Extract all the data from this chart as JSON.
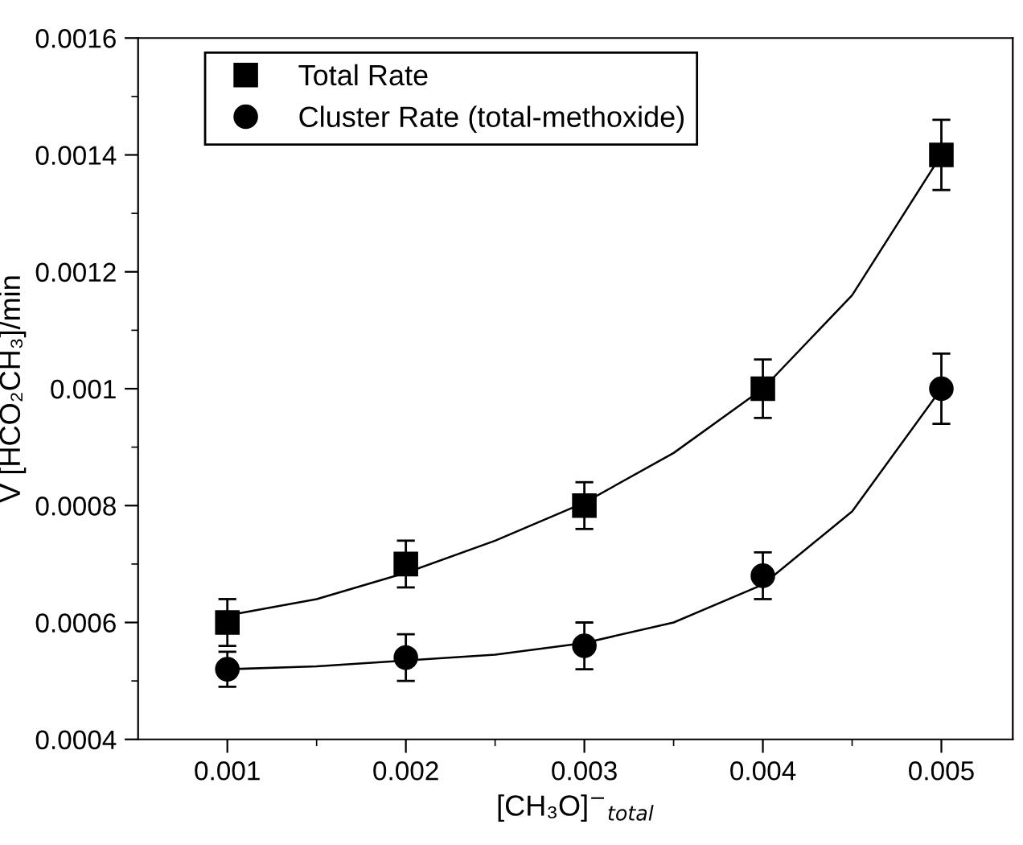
{
  "chart_data": {
    "type": "scatter",
    "xlabel": "[CH₃O]$^{−}$$_{total}$",
    "ylabel": "V [HCO₂CH₃]/min",
    "x": [
      0.001,
      0.002,
      0.003,
      0.004,
      0.005
    ],
    "series": [
      {
        "name": "Total Rate",
        "color": "#000000",
        "marker": "square",
        "values": [
          0.0006,
          0.0007,
          0.0008,
          0.001,
          0.0014
        ],
        "errors": [
          4e-05,
          4e-05,
          4e-05,
          5e-05,
          6e-05
        ]
      },
      {
        "name": "Cluster Rate (total-methoxide)",
        "color": "#000000",
        "marker": "circle",
        "values": [
          0.00052,
          0.00054,
          0.00056,
          0.00068,
          0.001
        ],
        "errors": [
          3e-05,
          4e-05,
          4e-05,
          4e-05,
          6e-05
        ]
      },
      {
        "type": "line",
        "color": "#000000",
        "marker": "none",
        "x": [
          0.001,
          0.0015,
          0.002,
          0.0025,
          0.003,
          0.0035,
          0.004,
          0.0045,
          0.005
        ],
        "values": [
          0.000612,
          0.00064,
          0.000685,
          0.00074,
          0.000805,
          0.00089,
          0.001,
          0.00116,
          0.0014
        ]
      },
      {
        "type": "line",
        "color": "#000000",
        "marker": "none",
        "x": [
          0.001,
          0.0015,
          0.002,
          0.0025,
          0.003,
          0.0035,
          0.004,
          0.0045,
          0.005
        ],
        "values": [
          0.00052,
          0.000525,
          0.000535,
          0.000545,
          0.000565,
          0.0006,
          0.000665,
          0.00079,
          0.001
        ]
      }
    ],
    "xlim": [
      0.0005,
      0.0054
    ],
    "ylim": [
      0.0004,
      0.0016
    ],
    "xticks": [
      0.001,
      0.002,
      0.003,
      0.004,
      0.005
    ],
    "yticks": [
      0.0004,
      0.0006,
      0.0008,
      0.001,
      0.0012,
      0.0014,
      0.0016
    ],
    "grid": false,
    "legend": "top left"
  }
}
